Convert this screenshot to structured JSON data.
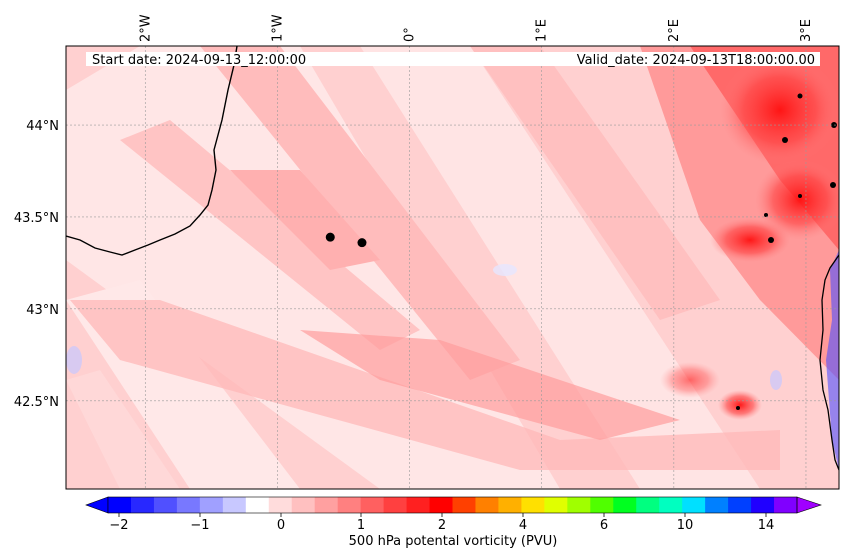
{
  "map": {
    "start_label": "Start date: 2024-09-13_12:00:00",
    "valid_label": "Valid_date: 2024-09-13T18:00:00.00",
    "lon_ticks": [
      {
        "value": -2,
        "label": "2°W"
      },
      {
        "value": -1,
        "label": "1°W"
      },
      {
        "value": 0,
        "label": "0°"
      },
      {
        "value": 1,
        "label": "1°E"
      },
      {
        "value": 2,
        "label": "2°E"
      },
      {
        "value": 3,
        "label": "3°E"
      }
    ],
    "lat_ticks": [
      {
        "value": 44.0,
        "label": "44°N"
      },
      {
        "value": 43.5,
        "label": "43.5°N"
      },
      {
        "value": 43.0,
        "label": "43°N"
      },
      {
        "value": 42.5,
        "label": "42.5°N"
      }
    ],
    "extent": {
      "lon": [
        -2.6,
        3.25
      ],
      "lat": [
        42.02,
        44.43
      ]
    },
    "markers": [
      {
        "lon": -0.6,
        "lat": 43.39
      },
      {
        "lon": -0.36,
        "lat": 43.36
      }
    ]
  },
  "colorbar": {
    "label": "500 hPa potental vorticity (PVU)",
    "tick_labels": [
      "−2",
      "−1",
      "0",
      "1",
      "2",
      "4",
      "6",
      "10",
      "14"
    ],
    "colors": [
      "#0000ff",
      "#2828ff",
      "#5050ff",
      "#7878ff",
      "#a0a0ff",
      "#c8c8ff",
      "#ffffff",
      "#ffdcdc",
      "#ffc0c0",
      "#ffa0a0",
      "#ff8080",
      "#ff6060",
      "#ff4040",
      "#ff2020",
      "#ff0000",
      "#ff4000",
      "#ff8000",
      "#ffb000",
      "#ffe000",
      "#e0ff00",
      "#a0ff00",
      "#50ff00",
      "#00ff20",
      "#00ff80",
      "#00ffc0",
      "#00e0ff",
      "#0080ff",
      "#0040ff",
      "#2000ff",
      "#8000ff"
    ]
  }
}
